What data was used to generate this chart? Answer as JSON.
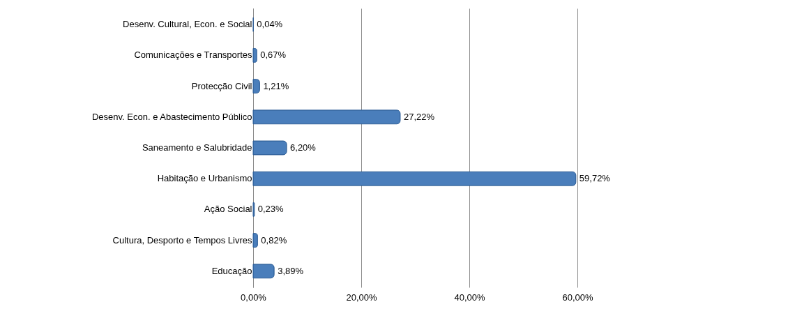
{
  "chart_data": {
    "type": "bar",
    "orientation": "horizontal",
    "categories": [
      "Desenv. Cultural, Econ. e Social",
      "Comunicações e Transportes",
      "Protecção Civil",
      "Desenv. Econ. e Abastecimento Público",
      "Saneamento e Salubridade",
      "Habitação e Urbanismo",
      "Ação Social",
      "Cultura, Desporto e Tempos Livres",
      "Educação"
    ],
    "values": [
      0.04,
      0.67,
      1.21,
      27.22,
      6.2,
      59.72,
      0.23,
      0.82,
      3.89
    ],
    "value_labels": [
      "0,04%",
      "0,67%",
      "1,21%",
      "27,22%",
      "6,20%",
      "59,72%",
      "0,23%",
      "0,82%",
      "3,89%"
    ],
    "color": "#4a7ebb",
    "xlim": [
      0,
      60
    ],
    "xticks": [
      {
        "value": 0,
        "label": "0,00%"
      },
      {
        "value": 20,
        "label": "20,00%"
      },
      {
        "value": 40,
        "label": "40,00%"
      },
      {
        "value": 60,
        "label": "60,00%"
      }
    ],
    "grid": "x"
  }
}
